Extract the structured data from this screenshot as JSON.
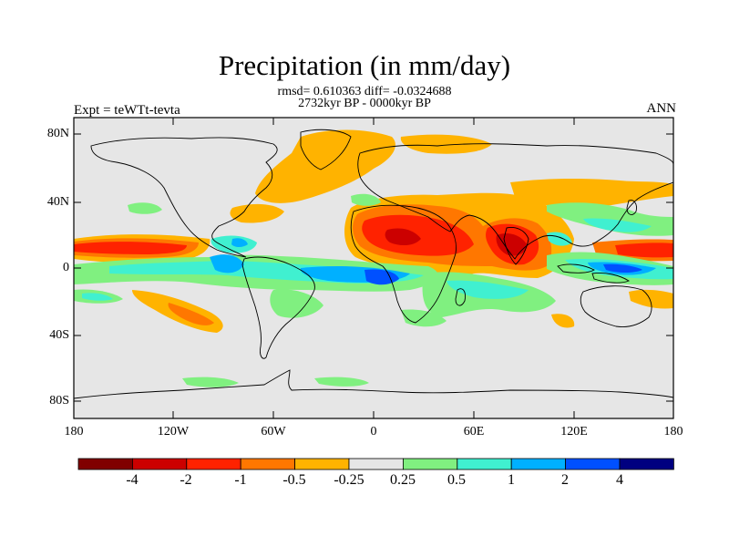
{
  "header": {
    "title": "Precipitation (in mm/day)",
    "stats_line": "rmsd= 0.610363 diff= -0.0324688",
    "period_line": "2732kyr BP - 0000kyr BP",
    "experiment_label": "Expt = teWTt-tevta",
    "season_label": "ANN"
  },
  "map": {
    "lat_labels": [
      "80N",
      "40N",
      "0",
      "40S",
      "80S"
    ],
    "lon_labels": [
      "180",
      "120W",
      "60W",
      "0",
      "60E",
      "120E",
      "180"
    ],
    "background_color": "#e6e6e6"
  },
  "colorbar": {
    "colors": [
      "#800000",
      "#cc0000",
      "#ff2200",
      "#ff7700",
      "#ffb300",
      "#e6e6e6",
      "#80f080",
      "#40f0d0",
      "#00b0ff",
      "#0050ff",
      "#000080"
    ],
    "labels": [
      "-4",
      "-2",
      "-1",
      "-0.5",
      "-0.25",
      "0.25",
      "0.5",
      "1",
      "2",
      "4"
    ]
  }
}
